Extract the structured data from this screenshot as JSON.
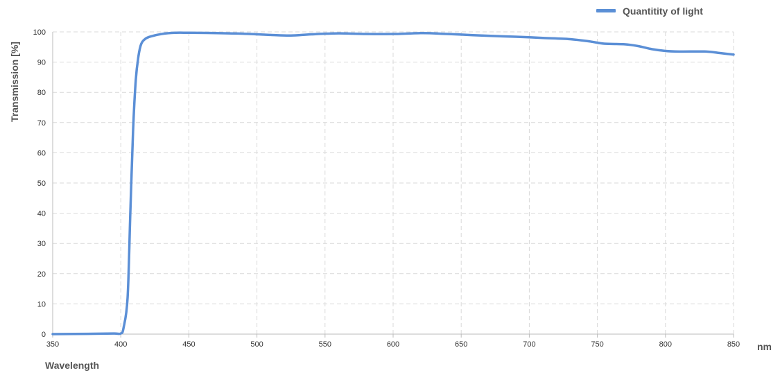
{
  "chart_data": {
    "type": "line",
    "xlabel": "Wavelength",
    "xunit": "nm",
    "ylabel": "Transmission [%]",
    "xlim": [
      350,
      850
    ],
    "ylim": [
      0,
      100
    ],
    "xticks": [
      350,
      400,
      450,
      500,
      550,
      600,
      650,
      700,
      750,
      800,
      850
    ],
    "yticks": [
      0,
      10,
      20,
      30,
      40,
      50,
      60,
      70,
      80,
      90,
      100
    ],
    "grid": true,
    "legend_position": "top-right",
    "series": [
      {
        "name": "Quantitity of light",
        "color": "#5b8fd6",
        "x": [
          350,
          380,
          395,
          400,
          402,
          405,
          407,
          409,
          411,
          413,
          415,
          418,
          422,
          430,
          440,
          450,
          470,
          490,
          510,
          525,
          540,
          560,
          580,
          600,
          620,
          630,
          650,
          670,
          690,
          710,
          730,
          745,
          755,
          770,
          780,
          790,
          800,
          810,
          830,
          840,
          850
        ],
        "y": [
          0,
          0.1,
          0.2,
          0.2,
          2,
          12,
          40,
          67,
          84,
          92,
          96,
          97.7,
          98.5,
          99.3,
          99.7,
          99.7,
          99.6,
          99.4,
          99,
          98.8,
          99.2,
          99.5,
          99.3,
          99.3,
          99.6,
          99.5,
          99.1,
          98.7,
          98.4,
          98,
          97.6,
          96.8,
          96.1,
          95.9,
          95.3,
          94.3,
          93.7,
          93.5,
          93.5,
          93,
          92.5
        ]
      }
    ]
  }
}
